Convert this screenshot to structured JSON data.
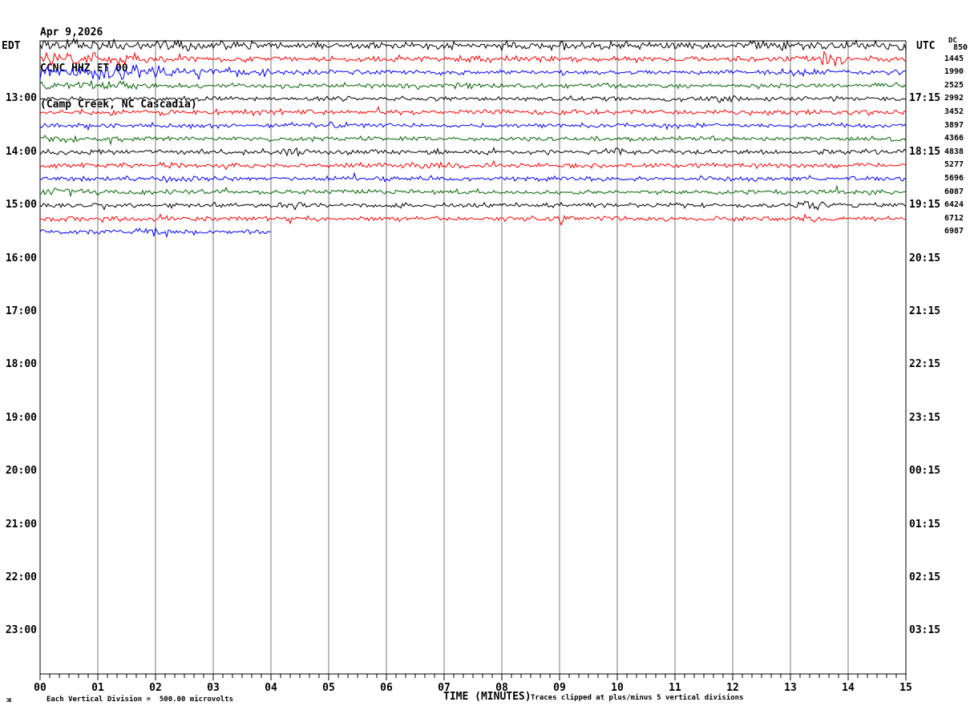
{
  "header": {
    "date": "Apr 9,2026",
    "station": "CCNC HHZ ET 00",
    "location": "(Camp Creek, NC Cascadia)"
  },
  "axes": {
    "left_timezone": "EDT",
    "right_timezone": "UTC",
    "left_hours": [
      "13:00",
      "14:00",
      "15:00",
      "16:00",
      "17:00",
      "18:00",
      "19:00",
      "20:00",
      "21:00",
      "22:00",
      "23:00"
    ],
    "right_hours": [
      "17:15",
      "18:15",
      "19:15",
      "20:15",
      "21:15",
      "22:15",
      "23:15",
      "00:15",
      "01:15",
      "02:15",
      "03:15"
    ],
    "x_ticks": [
      "00",
      "01",
      "02",
      "03",
      "04",
      "05",
      "06",
      "07",
      "08",
      "09",
      "10",
      "11",
      "12",
      "13",
      "14",
      "15"
    ],
    "x_label": "TIME (MINUTES)"
  },
  "right_scale": {
    "dc_label": "DC",
    "dc_value": "850",
    "values": [
      "1445",
      "1990",
      "2525",
      "2992",
      "3452",
      "3897",
      "4366",
      "4838",
      "5277",
      "5696",
      "6087",
      "6424",
      "6712",
      "6987"
    ]
  },
  "footer": {
    "scale_note": "Each Vertical Division =  500.00 microvolts",
    "clip_note": "Traces clipped at plus/minus 5 vertical divisions",
    "corner_mark": "M"
  },
  "colors": {
    "black": "#000000",
    "red": "#ff0000",
    "blue": "#0000ff",
    "green": "#006400",
    "grid": "#787878",
    "border": "#000000"
  },
  "chart_data": {
    "type": "line",
    "title": "CCNC HHZ ET 00 helicorder seismogram, Apr 9,2026, Camp Creek, NC Cascadia",
    "xlabel": "TIME (MINUTES)",
    "x_range_minutes": [
      0,
      15
    ],
    "minutes_per_line": 15,
    "grid": "vertical lines at each minute",
    "legend": "none",
    "vertical_division_microvolts": 500.0,
    "clip_divisions": 5,
    "rows": [
      {
        "color": "black",
        "right_value": "DC 850",
        "end_minute": 15,
        "base_amp": 3.0,
        "bursts": [
          [
            0,
            4,
            1.8
          ],
          [
            8,
            12,
            0.6
          ],
          [
            12,
            15,
            1.5
          ]
        ]
      },
      {
        "color": "red",
        "right_value": "1445",
        "end_minute": 15,
        "base_amp": 2.6,
        "bursts": [
          [
            0,
            1.8,
            3.0
          ],
          [
            13.55,
            13.95,
            9
          ]
        ]
      },
      {
        "color": "blue",
        "right_value": "1990",
        "end_minute": 15,
        "base_amp": 2.2,
        "bursts": [
          [
            0,
            2.3,
            5.0
          ],
          [
            2.3,
            4,
            1.5
          ],
          [
            12.5,
            13.5,
            1.5
          ]
        ]
      },
      {
        "color": "green",
        "right_value": "2525",
        "end_minute": 15,
        "base_amp": 2.3,
        "bursts": [
          [
            0,
            2,
            1.8
          ]
        ]
      },
      {
        "color": "black",
        "right_value": "2992",
        "end_minute": 15,
        "base_amp": 2.1,
        "bursts": [
          [
            11.5,
            12.2,
            1.2
          ]
        ]
      },
      {
        "color": "red",
        "right_value": "3452",
        "end_minute": 15,
        "base_amp": 2.3,
        "bursts": []
      },
      {
        "color": "blue",
        "right_value": "3897",
        "end_minute": 15,
        "base_amp": 2.1,
        "bursts": [
          [
            5,
            5.4,
            1.5
          ]
        ]
      },
      {
        "color": "green",
        "right_value": "4366",
        "end_minute": 15,
        "base_amp": 2.1,
        "bursts": [
          [
            0,
            0.6,
            1.5
          ]
        ]
      },
      {
        "color": "black",
        "right_value": "4838",
        "end_minute": 15,
        "base_amp": 2.3,
        "bursts": [
          [
            4.2,
            4.5,
            2
          ],
          [
            9.8,
            10.2,
            1.5
          ]
        ]
      },
      {
        "color": "red",
        "right_value": "5277",
        "end_minute": 15,
        "base_amp": 2.3,
        "bursts": []
      },
      {
        "color": "blue",
        "right_value": "5696",
        "end_minute": 15,
        "base_amp": 2.2,
        "bursts": []
      },
      {
        "color": "green",
        "right_value": "6087",
        "end_minute": 15,
        "base_amp": 2.2,
        "bursts": [
          [
            0,
            1,
            1.2
          ]
        ]
      },
      {
        "color": "black",
        "right_value": "6424",
        "end_minute": 15,
        "base_amp": 2.1,
        "bursts": [
          [
            4,
            4.6,
            1.5
          ],
          [
            13,
            13.6,
            2
          ]
        ]
      },
      {
        "color": "red",
        "right_value": "6712",
        "end_minute": 15,
        "base_amp": 2.3,
        "bursts": [
          [
            13.2,
            13.6,
            2.5
          ]
        ]
      },
      {
        "color": "blue",
        "right_value": "6987",
        "end_minute": 4,
        "base_amp": 2.4,
        "bursts": [
          [
            1.5,
            2.2,
            1.5
          ]
        ]
      }
    ]
  }
}
